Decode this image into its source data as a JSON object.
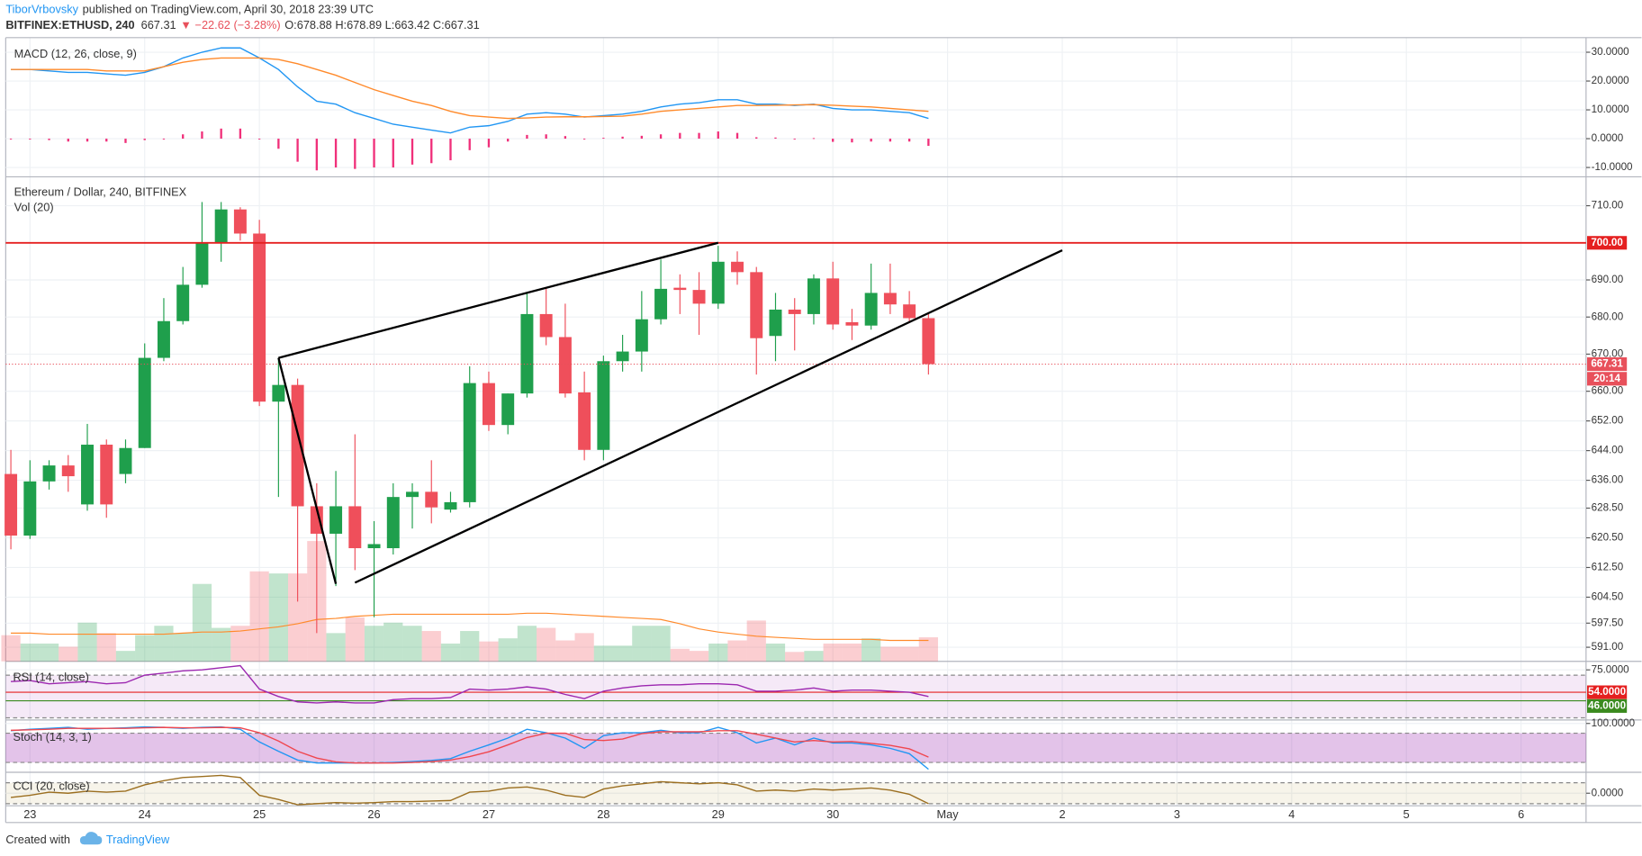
{
  "header": {
    "author": "TiborVrbovsky",
    "published": "published on TradingView.com, April 30, 2018 23:39 UTC",
    "symbol": "BITFINEX:ETHUSD, 240",
    "last": "667.31",
    "change": "▼ −22.62 (−3.28%)",
    "ohlc": "O:678.88 H:678.89 L:663.42 C:667.31"
  },
  "footer": {
    "created": "Created with",
    "brand": "TradingView"
  },
  "xaxis": {
    "xlim": [
      -0.27,
      82.4
    ],
    "xticks": [
      {
        "value": 1,
        "label": "23"
      },
      {
        "value": 7,
        "label": "24"
      },
      {
        "value": 13,
        "label": "25"
      },
      {
        "value": 19,
        "label": "26"
      },
      {
        "value": 25,
        "label": "27"
      },
      {
        "value": 31,
        "label": "28"
      },
      {
        "value": 37,
        "label": "29"
      },
      {
        "value": 43,
        "label": "30"
      },
      {
        "value": 49,
        "label": "May"
      },
      {
        "value": 55,
        "label": "2"
      },
      {
        "value": 61,
        "label": "3"
      },
      {
        "value": 67,
        "label": "4"
      },
      {
        "value": 73,
        "label": "5"
      },
      {
        "value": 79,
        "label": "6"
      }
    ]
  },
  "chart_data": [
    {
      "type": "line",
      "title": "MACD (12, 26, close, 9)",
      "ylim": [
        -11.8,
        33.6
      ],
      "yticks": [
        {
          "value": 30,
          "label": "30.0000"
        },
        {
          "value": 20,
          "label": "20.0000"
        },
        {
          "value": 10,
          "label": "10.0000"
        },
        {
          "value": 0,
          "label": "0.0000"
        },
        {
          "value": -10,
          "label": "-10.0000"
        }
      ],
      "series": [
        {
          "color": "#f0307a",
          "style": "histogram",
          "values": [
            0,
            0,
            -0.5,
            -1,
            -1,
            -1,
            -1.5,
            -0.5,
            0,
            1.5,
            2.5,
            3.5,
            3.5,
            0,
            -3.5,
            -8,
            -11,
            -10,
            -10.5,
            -10,
            -10,
            -9,
            -8.5,
            -7.5,
            -4,
            -3,
            -1,
            1.3,
            1.5,
            0.9,
            -0.1,
            0.3,
            0.7,
            1,
            1.5,
            2,
            2,
            2.5,
            2,
            0.5,
            0.4,
            -0.2,
            0.2,
            -1.1,
            -1.3,
            -1,
            -1,
            -1,
            -2.5
          ]
        },
        {
          "color": "#2196f3",
          "values": [
            24,
            24,
            23.5,
            23,
            23,
            22.5,
            22,
            23,
            25,
            28,
            30,
            31.5,
            31.5,
            28,
            24,
            18,
            13,
            12,
            9,
            7,
            5,
            4,
            3,
            2,
            4,
            4.5,
            6,
            8.5,
            9,
            8.5,
            7.5,
            8,
            8.5,
            9.5,
            11,
            12,
            12.5,
            13.5,
            13.5,
            12,
            12,
            11.5,
            12,
            10.5,
            10,
            10,
            9.5,
            9,
            7
          ]
        },
        {
          "color": "#ff8a2b",
          "values": [
            24,
            24,
            24,
            24,
            24,
            23.5,
            23.5,
            23.5,
            25,
            26.5,
            27.5,
            28,
            28,
            28,
            27.5,
            26,
            24,
            22,
            19.5,
            17,
            15,
            13,
            11.5,
            9.5,
            8,
            7.5,
            7,
            7.2,
            7.5,
            7.6,
            7.6,
            7.7,
            7.8,
            8.5,
            9.5,
            10,
            10.5,
            11,
            11.5,
            11.5,
            11.6,
            11.7,
            11.8,
            11.6,
            11.3,
            11,
            10.5,
            10,
            9.5
          ]
        }
      ]
    },
    {
      "type": "candlestick",
      "title": "Ethereum / Dollar, 240, BITFINEX",
      "ylim": [
        587.2,
        717.5
      ],
      "yticks": [
        {
          "value": 710,
          "label": "710.00"
        },
        {
          "value": 690,
          "label": "690.00"
        },
        {
          "value": 680,
          "label": "680.00"
        },
        {
          "value": 670,
          "label": "670.00"
        },
        {
          "value": 660,
          "label": "660.00"
        },
        {
          "value": 652,
          "label": "652.00"
        },
        {
          "value": 644,
          "label": "644.00"
        },
        {
          "value": 636,
          "label": "636.00"
        },
        {
          "value": 628.5,
          "label": "628.50"
        },
        {
          "value": 620.5,
          "label": "620.50"
        },
        {
          "value": 612.5,
          "label": "612.50"
        },
        {
          "value": 604.5,
          "label": "604.50"
        },
        {
          "value": 597.5,
          "label": "597.50"
        },
        {
          "value": 591,
          "label": "591.00"
        }
      ],
      "up_color": "#1f9f4c",
      "down_color": "#ef4f5b",
      "open": [
        637.7,
        621.1,
        635.7,
        640.0,
        629.5,
        645.6,
        637.7,
        644.7,
        669.0,
        678.9,
        688.7,
        700.0,
        709.0,
        702.5,
        657.2,
        661.7,
        629.0,
        621.6,
        629.0,
        617.7,
        617.7,
        631.5,
        632.9,
        628.1,
        630.1,
        662.2,
        650.9,
        659.4,
        680.8,
        674.6,
        659.7,
        644.2,
        668.1,
        670.7,
        679.4,
        687.9,
        687.3,
        683.6,
        694.9,
        692.1,
        674.9,
        682.0,
        680.8,
        690.4,
        678.6,
        677.7,
        686.5,
        683.4,
        679.7
      ],
      "high": [
        644.2,
        641.4,
        641.4,
        642.8,
        651.2,
        647.0,
        647.0,
        672.9,
        685.1,
        693.5,
        711.0,
        711.0,
        709.6,
        706.2,
        669.0,
        663.4,
        635.2,
        638.5,
        648.4,
        625.0,
        635.2,
        635.2,
        641.4,
        632.9,
        666.7,
        665.3,
        659.4,
        686.5,
        687.9,
        683.6,
        665.3,
        669.6,
        675.2,
        687.0,
        695.5,
        691.5,
        692.1,
        699.2,
        697.7,
        693.5,
        686.5,
        685.1,
        691.5,
        694.9,
        682.2,
        694.4,
        694.4,
        687.0,
        680.8
      ],
      "low": [
        617.4,
        620.2,
        633.5,
        632.9,
        627.8,
        625.9,
        635.2,
        644.7,
        668.1,
        678.0,
        687.9,
        694.9,
        700.6,
        656.0,
        631.5,
        603.3,
        594.8,
        607.5,
        611.8,
        599.1,
        616.0,
        623.0,
        624.4,
        627.3,
        628.7,
        649.3,
        648.4,
        658.3,
        672.4,
        658.3,
        641.4,
        641.4,
        665.3,
        665.3,
        678.0,
        680.8,
        675.2,
        682.2,
        688.7,
        664.5,
        668.1,
        671.0,
        678.0,
        676.6,
        673.8,
        676.6,
        680.8,
        678.6,
        664.5
      ],
      "close": [
        621.1,
        635.7,
        640.0,
        637.1,
        645.6,
        629.5,
        644.7,
        669.0,
        678.9,
        688.7,
        700.0,
        709.0,
        702.5,
        657.2,
        661.7,
        629.0,
        621.6,
        629.0,
        617.7,
        618.8,
        631.5,
        632.9,
        628.7,
        630.1,
        662.2,
        650.9,
        659.4,
        680.8,
        674.6,
        659.4,
        644.2,
        668.1,
        670.7,
        679.4,
        687.6,
        687.3,
        683.6,
        694.9,
        692.1,
        674.3,
        682.0,
        680.8,
        690.4,
        678.0,
        677.7,
        686.5,
        683.4,
        679.7,
        667.31
      ],
      "volume": {
        "title": "Vol (20)",
        "lim": [
          0,
          462
        ],
        "ma_color": "#ff8a2b",
        "values": [
          25,
          17,
          17,
          14,
          37,
          27,
          10,
          25,
          34,
          27,
          74,
          32,
          34,
          86,
          84,
          84,
          115,
          27,
          42,
          34,
          37,
          34,
          29,
          17,
          29,
          19,
          22,
          34,
          32,
          20,
          27,
          15,
          15,
          34,
          34,
          12,
          10,
          17,
          20,
          39,
          17,
          9,
          10,
          17,
          17,
          22,
          14,
          14,
          23
        ],
        "ma": [
          27,
          27,
          26,
          26,
          26,
          26,
          26,
          26,
          26,
          27,
          28,
          28,
          29,
          31,
          33,
          36,
          40,
          41,
          43,
          44,
          45,
          45,
          45,
          45,
          45,
          45,
          45,
          46,
          46,
          45,
          44,
          43,
          42,
          41,
          40,
          36,
          31,
          28,
          26,
          24,
          23,
          22,
          21,
          21,
          21,
          21,
          20,
          20,
          20
        ]
      },
      "hlines": [
        {
          "value": 700,
          "label": "700.00",
          "color": "#e52020"
        }
      ],
      "last": {
        "value": 667.31,
        "label": "667.31",
        "countdown": "20:14",
        "color": "#e8505b"
      },
      "drawings": [
        [
          [
            14,
            669
          ],
          [
            37,
            700
          ]
        ],
        [
          [
            14,
            669
          ],
          [
            17,
            608.1
          ]
        ],
        [
          [
            18,
            608.4
          ],
          [
            55,
            698.0
          ]
        ]
      ]
    },
    {
      "type": "line",
      "title": "RSI (14, close)",
      "ylim": [
        28,
        82
      ],
      "yticks": [
        {
          "value": 75,
          "label": "75.0000"
        }
      ],
      "band": [
        30,
        70
      ],
      "band_color": "#9c27b0",
      "levels": [
        {
          "value": 54,
          "label": "54.0000",
          "color": "#e52020"
        },
        {
          "value": 46,
          "label": "46.0000",
          "color": "#3a8a1e"
        }
      ],
      "series": [
        {
          "color": "#9c27b0",
          "values": [
            64,
            65,
            62,
            63,
            64,
            62,
            63,
            70,
            72,
            74,
            75,
            77,
            79,
            57,
            50,
            45,
            44,
            45,
            44,
            44,
            47,
            48,
            48,
            49,
            57,
            56,
            57,
            59,
            57,
            52,
            48,
            55,
            58,
            60,
            61,
            61,
            62,
            62,
            61,
            55,
            55,
            56,
            58,
            55,
            56,
            56,
            55,
            54,
            50
          ]
        }
      ]
    },
    {
      "type": "line",
      "title": "Stoch (14, 3, 1)",
      "ylim": [
        2,
        105
      ],
      "yticks": [
        {
          "value": 100,
          "label": "100.0000"
        }
      ],
      "band": [
        20,
        80
      ],
      "band_color": "#9c27b0",
      "series": [
        {
          "color": "#2196f3",
          "values": [
            85,
            88,
            90,
            92,
            88,
            90,
            91,
            93,
            92,
            90,
            92,
            93,
            88,
            62,
            43,
            25,
            19,
            19,
            19,
            19,
            20,
            22,
            24,
            28,
            43,
            56,
            70,
            88,
            81,
            70,
            49,
            75,
            81,
            81,
            86,
            81,
            81,
            92,
            81,
            60,
            70,
            56,
            70,
            60,
            60,
            56,
            49,
            38,
            6
          ]
        },
        {
          "color": "#f0474f",
          "values": [
            86,
            87,
            88,
            90,
            90,
            90,
            90,
            91,
            92,
            91,
            91,
            92,
            91,
            81,
            64,
            43,
            29,
            21,
            19,
            19,
            19,
            20,
            22,
            25,
            32,
            42,
            56,
            71,
            80,
            80,
            67,
            65,
            68,
            79,
            83,
            83,
            83,
            85,
            85,
            78,
            70,
            62,
            65,
            62,
            63,
            59,
            55,
            48,
            31
          ]
        }
      ]
    },
    {
      "type": "line",
      "title": "CCI (20, close)",
      "ylim": [
        -120,
        190
      ],
      "yticks": [
        {
          "value": 0,
          "label": "0.0000"
        }
      ],
      "band": [
        -100,
        100
      ],
      "band_color": "#b5932d",
      "series": [
        {
          "color": "#9b6e1f",
          "values": [
            -40,
            -20,
            10,
            0,
            20,
            10,
            20,
            80,
            120,
            150,
            160,
            170,
            150,
            -20,
            -60,
            -110,
            -100,
            -90,
            -95,
            -90,
            -80,
            -80,
            -75,
            -70,
            10,
            20,
            50,
            60,
            30,
            -20,
            -40,
            40,
            70,
            90,
            110,
            100,
            90,
            100,
            80,
            20,
            30,
            20,
            40,
            30,
            40,
            50,
            30,
            -10,
            -100
          ]
        }
      ]
    }
  ]
}
